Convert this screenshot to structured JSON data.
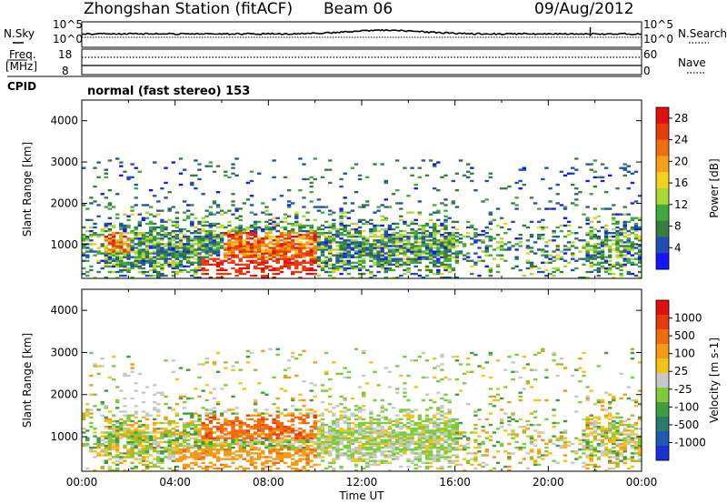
{
  "header": {
    "title": "Zhongshan Station (fitACF)",
    "beam": "Beam 06",
    "date": "09/Aug/2012"
  },
  "strip1": {
    "left_label": "N.Sky",
    "right_label": "N.Search",
    "left_ticks": [
      "10^5",
      "10^0"
    ],
    "right_ticks": [
      "10^5",
      "10^0"
    ]
  },
  "strip2": {
    "left_label_line1": "Freq.",
    "left_label_line2": "[MHz]",
    "right_label": "Nave",
    "left_ticks": [
      "18",
      "8"
    ],
    "right_ticks": [
      "60",
      "0"
    ]
  },
  "cpid": {
    "label": "CPID",
    "text": "normal (fast stereo) 153"
  },
  "chart_data": [
    {
      "type": "heatmap",
      "panel": "power",
      "ylabel": "Slant Range [km]",
      "xlabel": "",
      "yticks": [
        "1000",
        "2000",
        "3000",
        "4000"
      ],
      "ylim": [
        180,
        4500
      ],
      "xlim_hours": [
        0,
        24
      ],
      "colorbar": {
        "label": "Power [dB]",
        "ticks": [
          "4",
          "8",
          "12",
          "16",
          "20",
          "24",
          "28"
        ],
        "range": [
          0,
          30
        ],
        "colors": [
          "#1515ff",
          "#2050b4",
          "#377d3c",
          "#3fa83f",
          "#a8d832",
          "#f2d21e",
          "#f5a016",
          "#f06e0f",
          "#e63c0c",
          "#e01010"
        ]
      }
    },
    {
      "type": "heatmap",
      "panel": "velocity",
      "ylabel": "Slant Range [km]",
      "xlabel": "Time UT",
      "yticks": [
        "1000",
        "2000",
        "3000",
        "4000"
      ],
      "xticks": [
        "00:00",
        "04:00",
        "08:00",
        "12:00",
        "16:00",
        "20:00",
        "00:00"
      ],
      "ylim": [
        180,
        4500
      ],
      "xlim_hours": [
        0,
        24
      ],
      "colorbar": {
        "label": "Velocity [m s-1]",
        "ticks": [
          "1000",
          "500",
          "100",
          "25",
          "-25",
          "-100",
          "-500",
          "-1000"
        ],
        "colors": [
          "#1a2fd6",
          "#1d5ab0",
          "#2c7a6e",
          "#3f9c3f",
          "#7ecc3a",
          "#c8c8c8",
          "#f5c21a",
          "#f59a16",
          "#f06a10",
          "#e63a0e",
          "#e01010"
        ]
      }
    }
  ]
}
